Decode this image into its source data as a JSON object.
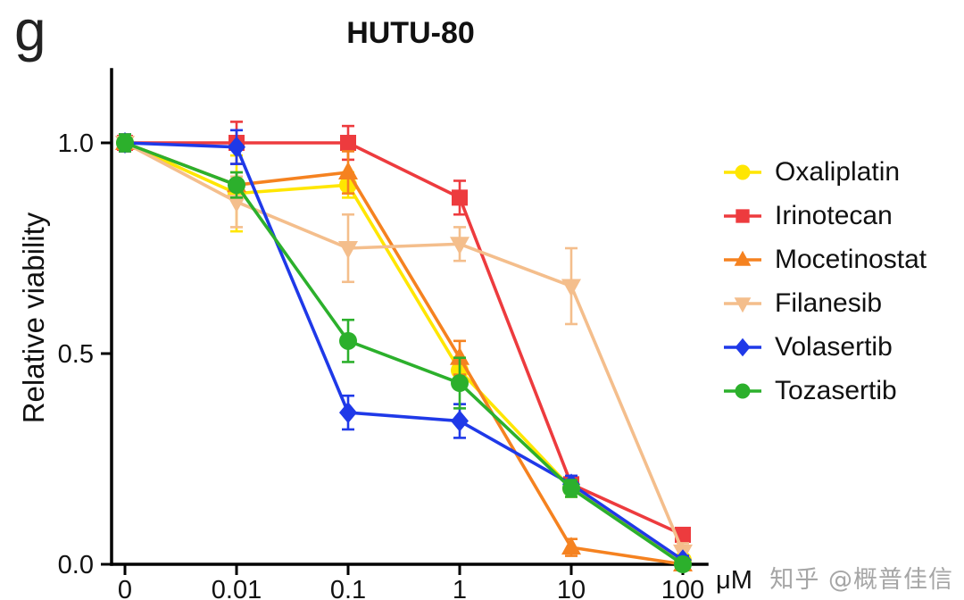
{
  "panel_label": "g",
  "watermark": "知乎 @概普佳信",
  "chart_data": {
    "type": "line",
    "title": "HUTU-80",
    "ylabel": "Relative viability",
    "x_unit": "μM",
    "x_tick_labels": [
      "0",
      "0.01",
      "0.1",
      "1",
      "10",
      "100"
    ],
    "y_ticks": [
      {
        "value": 0.0,
        "label": "0.0"
      },
      {
        "value": 0.5,
        "label": "0.5"
      },
      {
        "value": 1.0,
        "label": "1.0"
      }
    ],
    "ylim": [
      0,
      1.17
    ],
    "grid": false,
    "legend_position": "right",
    "series": [
      {
        "name": "Oxaliplatin",
        "color": "#FFE600",
        "marker": "circle",
        "values": [
          1.0,
          0.88,
          0.9,
          0.46,
          0.18,
          0.01
        ],
        "errors": [
          0.02,
          0.09,
          0.03,
          0.03,
          0.02,
          0.01
        ]
      },
      {
        "name": "Irinotecan",
        "color": "#ED3B3E",
        "marker": "square",
        "values": [
          1.0,
          1.0,
          1.0,
          0.87,
          0.19,
          0.07
        ],
        "errors": [
          0.02,
          0.05,
          0.04,
          0.04,
          0.02,
          0.01
        ]
      },
      {
        "name": "Mocetinostat",
        "color": "#F58220",
        "marker": "triangle-up",
        "values": [
          1.0,
          0.9,
          0.93,
          0.49,
          0.04,
          0.0
        ],
        "errors": [
          0.02,
          0.03,
          0.05,
          0.04,
          0.02,
          0.01
        ]
      },
      {
        "name": "Filanesib",
        "color": "#F4BE8C",
        "marker": "triangle-down",
        "values": [
          1.0,
          0.86,
          0.75,
          0.76,
          0.66,
          0.03
        ],
        "errors": [
          0.02,
          0.06,
          0.08,
          0.04,
          0.09,
          0.02
        ]
      },
      {
        "name": "Volasertib",
        "color": "#1F39E8",
        "marker": "diamond",
        "values": [
          1.0,
          0.99,
          0.36,
          0.34,
          0.19,
          0.01
        ],
        "errors": [
          0.02,
          0.04,
          0.04,
          0.04,
          0.02,
          0.01
        ]
      },
      {
        "name": "Tozasertib",
        "color": "#2CB02C",
        "marker": "circle",
        "values": [
          1.0,
          0.9,
          0.53,
          0.43,
          0.18,
          0.0
        ],
        "errors": [
          0.02,
          0.03,
          0.05,
          0.06,
          0.02,
          0.01
        ]
      }
    ]
  }
}
